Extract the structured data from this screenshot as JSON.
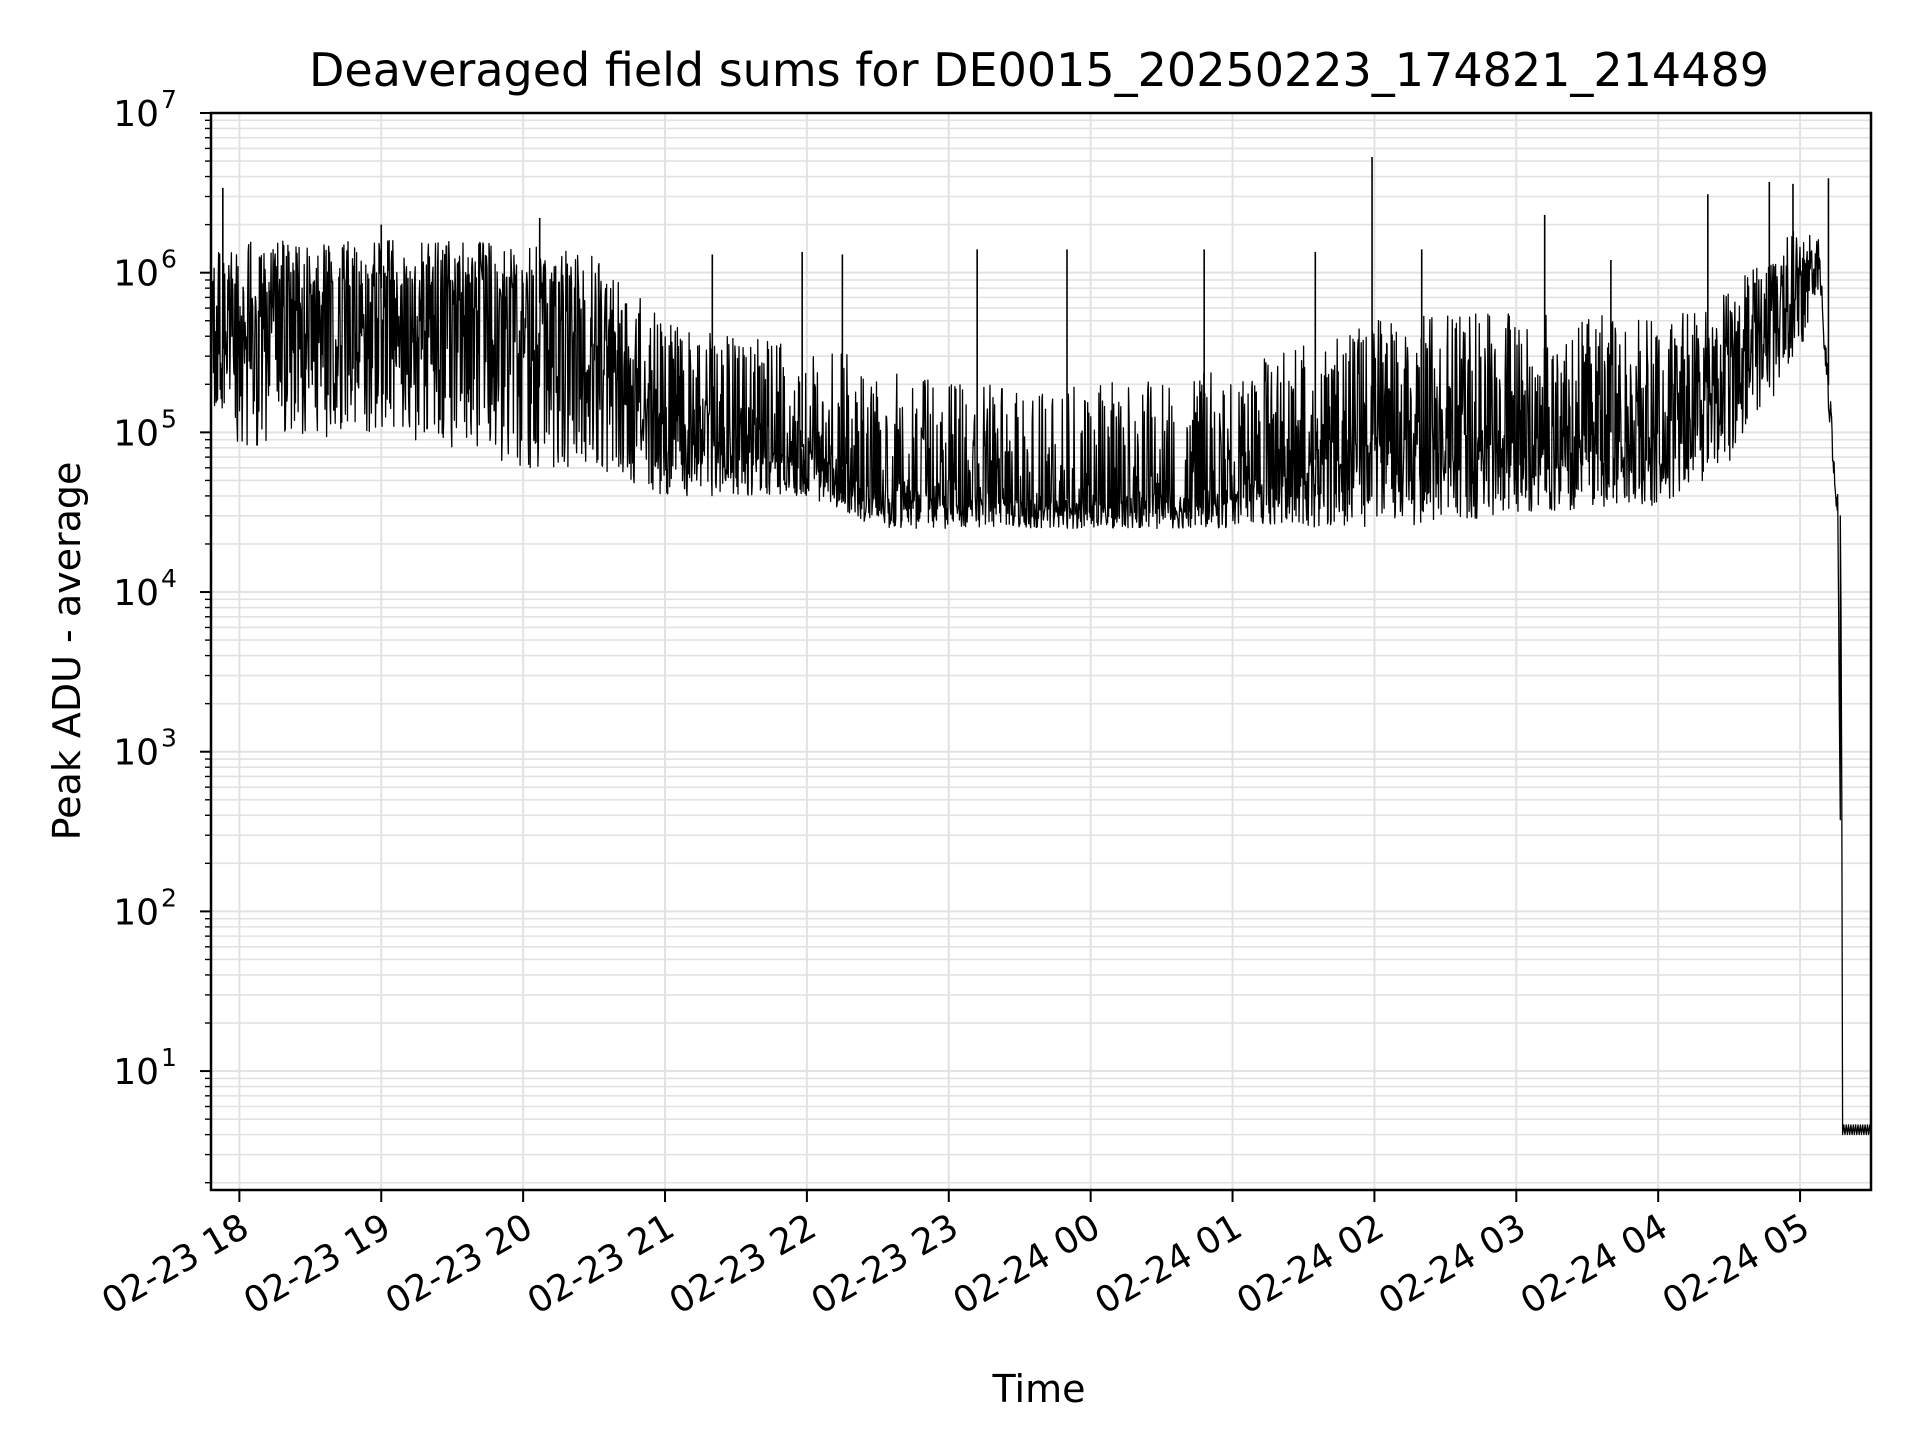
{
  "chart_data": {
    "type": "line",
    "title": "Deaveraged field sums for DE0015_20250223_174821_214489",
    "xlabel": "Time",
    "ylabel": "Peak ADU - average",
    "yscale": "log",
    "ylim": [
      1.8,
      10000000
    ],
    "xlim": [
      "2025-02-23 17:48",
      "2025-02-24 05:30"
    ],
    "grid": true,
    "line_color": "#000000",
    "grid_color": "#e2e2e2",
    "y_ticks": [
      {
        "base": "10",
        "exp": "1",
        "value": 10
      },
      {
        "base": "10",
        "exp": "2",
        "value": 100
      },
      {
        "base": "10",
        "exp": "3",
        "value": 1000
      },
      {
        "base": "10",
        "exp": "4",
        "value": 10000
      },
      {
        "base": "10",
        "exp": "5",
        "value": 100000
      },
      {
        "base": "10",
        "exp": "6",
        "value": 1000000
      },
      {
        "base": "10",
        "exp": "7",
        "value": 10000000
      }
    ],
    "x_ticks": [
      {
        "label": "02-23 18",
        "time": "2025-02-23 18:00"
      },
      {
        "label": "02-23 19",
        "time": "2025-02-23 19:00"
      },
      {
        "label": "02-23 20",
        "time": "2025-02-23 20:00"
      },
      {
        "label": "02-23 21",
        "time": "2025-02-23 21:00"
      },
      {
        "label": "02-23 22",
        "time": "2025-02-23 22:00"
      },
      {
        "label": "02-23 23",
        "time": "2025-02-23 23:00"
      },
      {
        "label": "02-24 00",
        "time": "2025-02-24 00:00"
      },
      {
        "label": "02-24 01",
        "time": "2025-02-24 01:00"
      },
      {
        "label": "02-24 02",
        "time": "2025-02-24 02:00"
      },
      {
        "label": "02-24 03",
        "time": "2025-02-24 03:00"
      },
      {
        "label": "02-24 04",
        "time": "2025-02-24 04:00"
      },
      {
        "label": "02-24 05",
        "time": "2025-02-24 05:00"
      }
    ],
    "series": [
      {
        "envelope": [
          {
            "time": "2025-02-23 17:48",
            "high": 1500000,
            "low": 150000,
            "typical": 250000
          },
          {
            "time": "2025-02-23 18:00",
            "high": 1600000,
            "low": 80000,
            "typical": 500000
          },
          {
            "time": "2025-02-23 18:30",
            "high": 1600000,
            "low": 90000,
            "typical": 700000
          },
          {
            "time": "2025-02-23 19:00",
            "high": 1600000,
            "low": 100000,
            "typical": 800000
          },
          {
            "time": "2025-02-23 19:30",
            "high": 1600000,
            "low": 80000,
            "typical": 800000
          },
          {
            "time": "2025-02-23 20:00",
            "high": 1500000,
            "low": 60000,
            "typical": 700000
          },
          {
            "time": "2025-02-23 20:30",
            "high": 1300000,
            "low": 60000,
            "typical": 500000
          },
          {
            "time": "2025-02-23 21:00",
            "high": 500000,
            "low": 40000,
            "typical": 120000
          },
          {
            "time": "2025-02-23 21:30",
            "high": 400000,
            "low": 40000,
            "typical": 90000
          },
          {
            "time": "2025-02-23 22:00",
            "high": 400000,
            "low": 40000,
            "typical": 80000
          },
          {
            "time": "2025-02-23 22:30",
            "high": 250000,
            "low": 25000,
            "typical": 45000
          },
          {
            "time": "2025-02-23 23:00",
            "high": 200000,
            "low": 25000,
            "typical": 40000
          },
          {
            "time": "2025-02-24 00:00",
            "high": 200000,
            "low": 25000,
            "typical": 38000
          },
          {
            "time": "2025-02-24 01:00",
            "high": 250000,
            "low": 25000,
            "typical": 45000
          },
          {
            "time": "2025-02-24 02:00",
            "high": 500000,
            "low": 25000,
            "typical": 90000
          },
          {
            "time": "2025-02-24 03:00",
            "high": 600000,
            "low": 30000,
            "typical": 100000
          },
          {
            "time": "2025-02-24 04:00",
            "high": 500000,
            "low": 35000,
            "typical": 100000
          },
          {
            "time": "2025-02-24 04:30",
            "high": 800000,
            "low": 60000,
            "typical": 250000
          },
          {
            "time": "2025-02-24 05:00",
            "high": 2000000,
            "low": 300000,
            "typical": 1000000
          },
          {
            "time": "2025-02-24 05:08",
            "high": 1600000,
            "low": 800000,
            "typical": 1300000
          },
          {
            "time": "2025-02-24 05:16",
            "high": 40000,
            "low": 25000,
            "typical": 30000
          },
          {
            "time": "2025-02-24 05:18",
            "high": 4,
            "low": 4,
            "typical": 4
          },
          {
            "time": "2025-02-24 05:30",
            "high": 4,
            "low": 4,
            "typical": 4
          }
        ],
        "spikes": [
          {
            "time": "2025-02-23 17:53",
            "value": 3400000
          },
          {
            "time": "2025-02-23 19:00",
            "value": 2000000
          },
          {
            "time": "2025-02-23 20:07",
            "value": 2200000
          },
          {
            "time": "2025-02-23 21:20",
            "value": 1300000
          },
          {
            "time": "2025-02-23 21:58",
            "value": 1350000
          },
          {
            "time": "2025-02-23 22:15",
            "value": 1300000
          },
          {
            "time": "2025-02-23 23:12",
            "value": 1400000
          },
          {
            "time": "2025-02-23 23:50",
            "value": 1400000
          },
          {
            "time": "2025-02-24 00:48",
            "value": 1400000
          },
          {
            "time": "2025-02-24 01:35",
            "value": 1350000
          },
          {
            "time": "2025-02-24 01:59",
            "value": 5300000
          },
          {
            "time": "2025-02-24 02:20",
            "value": 1400000
          },
          {
            "time": "2025-02-24 03:12",
            "value": 2300000
          },
          {
            "time": "2025-02-24 03:40",
            "value": 1200000
          },
          {
            "time": "2025-02-24 04:21",
            "value": 3100000
          },
          {
            "time": "2025-02-24 04:47",
            "value": 3700000
          },
          {
            "time": "2025-02-24 04:57",
            "value": 3600000
          },
          {
            "time": "2025-02-24 05:12",
            "value": 3900000
          }
        ]
      }
    ]
  }
}
